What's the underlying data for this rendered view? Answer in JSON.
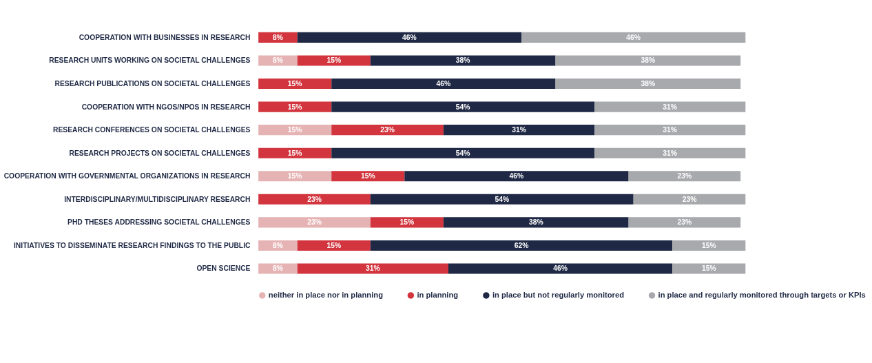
{
  "chart_data": {
    "type": "bar",
    "orientation": "horizontal",
    "stacked": true,
    "legend": "bottom",
    "grid": false,
    "categories": [
      "COOPERATION WITH BUSINESSES IN RESEARCH",
      "RESEARCH UNITS WORKING ON SOCIETAL CHALLENGES",
      "RESEARCH PUBLICATIONS ON SOCIETAL CHALLENGES",
      "COOPERATION WITH NGOS/NPOS IN RESEARCH",
      "RESEARCH CONFERENCES ON SOCIETAL CHALLENGES",
      "RESEARCH PROJECTS ON SOCIETAL CHALLENGES",
      "COOPERATION WITH GOVERNMENTAL ORGANIZATIONS IN RESEARCH",
      "INTERDISCIPLINARY/MULTIDISCIPLINARY RESEARCH",
      "PHD THESES ADDRESSING SOCIETAL CHALLENGES",
      "INITIATIVES TO DISSEMINATE RESEARCH FINDINGS TO THE PUBLIC",
      "OPEN SCIENCE"
    ],
    "series": [
      {
        "name": "neither in place nor in planning",
        "color": "#e6b3b4",
        "values": [
          null,
          8,
          null,
          null,
          15,
          null,
          15,
          null,
          23,
          8,
          8
        ],
        "value_labels": [
          null,
          "8%",
          null,
          null,
          "15%",
          null,
          "15%",
          null,
          "23%",
          "8%",
          "8%"
        ]
      },
      {
        "name": "in planning",
        "color": "#d2353e",
        "values": [
          8,
          15,
          15,
          15,
          23,
          15,
          15,
          23,
          15,
          15,
          31
        ],
        "value_labels": [
          "8%",
          "15%",
          "15%",
          "15%",
          "23%",
          "15%",
          "15%",
          "23%",
          "15%",
          "15%",
          "31%"
        ]
      },
      {
        "name": "in place but not regularly monitored",
        "color": "#1f2945",
        "values": [
          46,
          38,
          46,
          54,
          31,
          54,
          46,
          54,
          38,
          62,
          46
        ],
        "value_labels": [
          "46%",
          "38%",
          "46%",
          "54%",
          "31%",
          "54%",
          "46%",
          "54%",
          "38%",
          "62%",
          "46%"
        ]
      },
      {
        "name": "in place and regularly monitored through targets or KPIs",
        "color": "#a8a9ad",
        "values": [
          46,
          38,
          38,
          31,
          31,
          31,
          23,
          23,
          23,
          15,
          15
        ],
        "value_labels": [
          "46%",
          "38%",
          "38%",
          "31%",
          "31%",
          "31%",
          "23%",
          "23%",
          "23%",
          "15%",
          "15%"
        ]
      }
    ]
  }
}
